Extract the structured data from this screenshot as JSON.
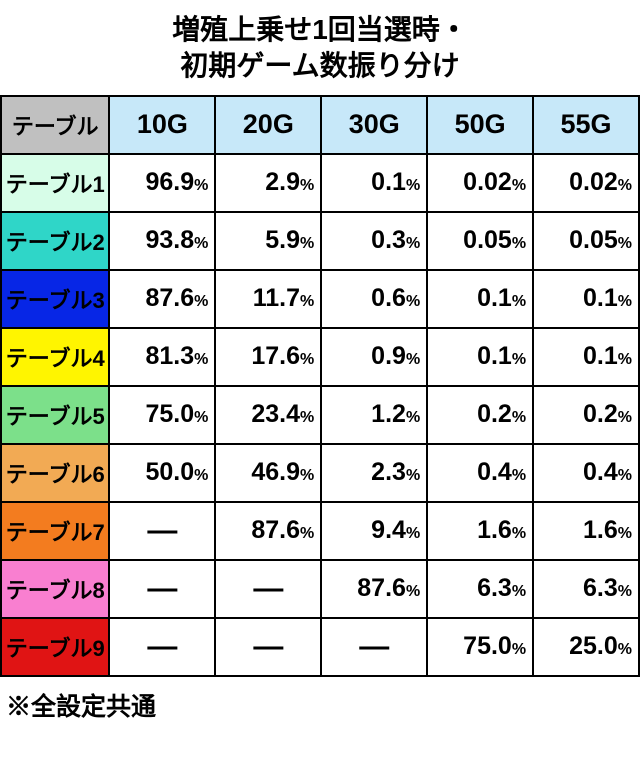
{
  "title_line1": "増殖上乗せ1回当選時・",
  "title_line2": "初期ゲーム数振り分け",
  "title_fontsize": 28,
  "corner_label": "テーブル",
  "corner_bg": "#c0c0c0",
  "columns": [
    {
      "label": "10G",
      "bg": "#c7e8f9"
    },
    {
      "label": "20G",
      "bg": "#c7e8f9"
    },
    {
      "label": "30G",
      "bg": "#c7e8f9"
    },
    {
      "label": "50G",
      "bg": "#c7e8f9"
    },
    {
      "label": "55G",
      "bg": "#c7e8f9"
    }
  ],
  "col_header_fontsize": 27,
  "rows": [
    {
      "label": "テーブル1",
      "bg": "#d7fde8",
      "cells": [
        "96.9",
        "2.9",
        "0.1",
        "0.02",
        "0.02"
      ]
    },
    {
      "label": "テーブル2",
      "bg": "#2fd6c8",
      "cells": [
        "93.8",
        "5.9",
        "0.3",
        "0.05",
        "0.05"
      ]
    },
    {
      "label": "テーブル3",
      "bg": "#0726e6",
      "cells": [
        "87.6",
        "11.7",
        "0.6",
        "0.1",
        "0.1"
      ]
    },
    {
      "label": "テーブル4",
      "bg": "#fff500",
      "cells": [
        "81.3",
        "17.6",
        "0.9",
        "0.1",
        "0.1"
      ]
    },
    {
      "label": "テーブル5",
      "bg": "#7ce08a",
      "cells": [
        "75.0",
        "23.4",
        "1.2",
        "0.2",
        "0.2"
      ]
    },
    {
      "label": "テーブル6",
      "bg": "#f2aa54",
      "cells": [
        "50.0",
        "46.9",
        "2.3",
        "0.4",
        "0.4"
      ]
    },
    {
      "label": "テーブル7",
      "bg": "#f37c1f",
      "cells": [
        "—",
        "87.6",
        "9.4",
        "1.6",
        "1.6"
      ]
    },
    {
      "label": "テーブル8",
      "bg": "#f97fd0",
      "cells": [
        "—",
        "—",
        "87.6",
        "6.3",
        "6.3"
      ]
    },
    {
      "label": "テーブル9",
      "bg": "#e01414",
      "cells": [
        "—",
        "—",
        "—",
        "75.0",
        "25.0"
      ]
    }
  ],
  "row_label_fontsize": 22,
  "cell_num_fontsize": 25,
  "cell_pct_fontsize": 16,
  "cell_bg": "#ffffff",
  "border_color": "#000000",
  "dash_char": "—",
  "percent_char": "%",
  "footnote": "※全設定共通",
  "footnote_fontsize": 25,
  "col_widths": {
    "first": "17%",
    "rest": "16.6%"
  }
}
